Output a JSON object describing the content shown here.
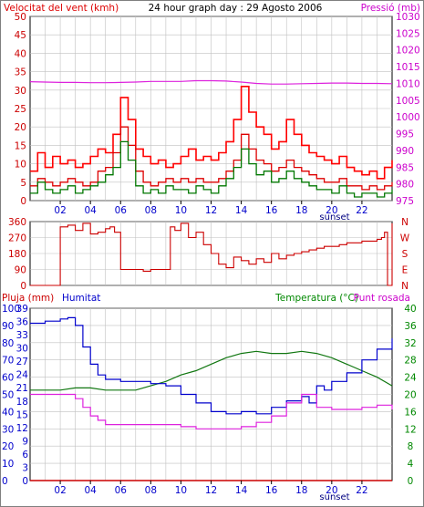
{
  "colors": {
    "wind": "#dd0000",
    "gust": "#ff0000",
    "pressure": "#dd22dd",
    "green_wind": "#007700",
    "blue_wind": "#0000cc",
    "direction": "#cc0000",
    "rain": "#cc0000",
    "humidity": "#0000cc",
    "temperature": "#117711",
    "dewpoint": "#dd22dd",
    "grid": "#c0c0c0",
    "axis_red": "#cc0000",
    "axis_blue": "#0000cc",
    "axis_green": "#008800",
    "axis_magenta": "#cc00cc"
  },
  "chart_data": [
    {
      "type": "line",
      "title": "24 hour graph day : 29 Agosto 2006",
      "ylabel_left": "Velocitat del vent (kmh)",
      "ylabel_right": "Pressió (mb)",
      "x_tick_labels": [
        "02",
        "04",
        "06",
        "08",
        "10",
        "12",
        "14",
        "16",
        "18",
        "20",
        "22"
      ],
      "x_extra_label": "sunset",
      "xlim": [
        0,
        24
      ],
      "ylim_left": [
        0,
        50
      ],
      "ylim_right": [
        975,
        1030
      ],
      "y_ticks_left": [
        0,
        5,
        10,
        15,
        20,
        25,
        30,
        35,
        40,
        45,
        50
      ],
      "y_ticks_right": [
        975,
        980,
        985,
        990,
        995,
        1000,
        1005,
        1010,
        1015,
        1020,
        1025,
        1030
      ],
      "series": [
        {
          "axis": "right",
          "style": "pressure",
          "x": [
            0,
            1,
            2,
            3,
            4,
            5,
            6,
            7,
            8,
            9,
            10,
            11,
            12,
            13,
            14,
            15,
            16,
            17,
            18,
            19,
            20,
            21,
            22,
            23,
            24
          ],
          "values": [
            1010.5,
            1010.4,
            1010.3,
            1010.3,
            1010.2,
            1010.2,
            1010.3,
            1010.4,
            1010.6,
            1010.6,
            1010.6,
            1010.8,
            1010.8,
            1010.7,
            1010.4,
            1010.0,
            1009.8,
            1009.8,
            1009.9,
            1010.0,
            1010.1,
            1010.1,
            1010.0,
            1010.0,
            1009.9
          ]
        },
        {
          "axis": "left",
          "style": "gust",
          "x": [
            0,
            0.5,
            1,
            1.5,
            2,
            2.5,
            3,
            3.5,
            4,
            4.5,
            5,
            5.5,
            6,
            6.5,
            7,
            7.5,
            8,
            8.5,
            9,
            9.5,
            10,
            10.5,
            11,
            11.5,
            12,
            12.5,
            13,
            13.5,
            14,
            14.5,
            15,
            15.5,
            16,
            16.5,
            17,
            17.5,
            18,
            18.5,
            19,
            19.5,
            20,
            20.5,
            21,
            21.5,
            22,
            22.5,
            23,
            23.5,
            24
          ],
          "values": [
            8,
            13,
            9,
            12,
            10,
            11,
            9,
            10,
            12,
            14,
            13,
            18,
            28,
            22,
            14,
            12,
            10,
            11,
            9,
            10,
            12,
            14,
            11,
            12,
            11,
            13,
            16,
            22,
            31,
            24,
            20,
            18,
            14,
            16,
            22,
            18,
            15,
            13,
            12,
            11,
            10,
            12,
            9,
            8,
            7,
            8,
            6,
            9,
            11
          ]
        },
        {
          "axis": "left",
          "style": "wind",
          "x": [
            0,
            0.5,
            1,
            1.5,
            2,
            2.5,
            3,
            3.5,
            4,
            4.5,
            5,
            5.5,
            6,
            6.5,
            7,
            7.5,
            8,
            8.5,
            9,
            9.5,
            10,
            10.5,
            11,
            11.5,
            12,
            12.5,
            13,
            13.5,
            14,
            14.5,
            15,
            15.5,
            16,
            16.5,
            17,
            17.5,
            18,
            18.5,
            19,
            19.5,
            20,
            20.5,
            21,
            21.5,
            22,
            22.5,
            23,
            23.5,
            24
          ],
          "values": [
            4,
            6,
            5,
            4,
            5,
            6,
            5,
            4,
            5,
            8,
            9,
            13,
            20,
            15,
            8,
            5,
            4,
            5,
            6,
            5,
            6,
            5,
            6,
            5,
            5,
            6,
            8,
            11,
            18,
            14,
            11,
            10,
            8,
            9,
            11,
            9,
            8,
            7,
            6,
            5,
            5,
            6,
            4,
            4,
            3,
            4,
            3,
            4,
            5
          ]
        },
        {
          "axis": "left",
          "style": "green_wind",
          "x": [
            0,
            0.5,
            1,
            1.5,
            2,
            2.5,
            3,
            3.5,
            4,
            4.5,
            5,
            5.5,
            6,
            6.5,
            7,
            7.5,
            8,
            8.5,
            9,
            9.5,
            10,
            10.5,
            11,
            11.5,
            12,
            12.5,
            13,
            13.5,
            14,
            14.5,
            15,
            15.5,
            16,
            16.5,
            17,
            17.5,
            18,
            18.5,
            19,
            19.5,
            20,
            20.5,
            21,
            21.5,
            22,
            22.5,
            23,
            23.5,
            24
          ],
          "values": [
            2,
            5,
            3,
            2,
            3,
            4,
            2,
            3,
            4,
            5,
            7,
            9,
            16,
            11,
            4,
            2,
            3,
            2,
            4,
            3,
            3,
            2,
            4,
            3,
            2,
            4,
            6,
            9,
            14,
            10,
            7,
            8,
            5,
            6,
            8,
            6,
            5,
            4,
            3,
            3,
            2,
            4,
            2,
            1,
            2,
            2,
            1,
            2,
            3
          ]
        }
      ]
    },
    {
      "type": "line",
      "ylabel_right_letters": [
        "N",
        "W",
        "S",
        "E",
        "N"
      ],
      "y_ticks_left": [
        0,
        90,
        180,
        270,
        360
      ],
      "ylim": [
        0,
        360
      ],
      "xlim": [
        0,
        24
      ],
      "series": [
        {
          "style": "direction",
          "x": [
            0,
            0.3,
            0.6,
            1.0,
            1.3,
            1.6,
            2.0,
            2.5,
            3.0,
            3.5,
            4.0,
            4.5,
            5.0,
            5.3,
            5.6,
            6.0,
            6.5,
            7.0,
            7.5,
            8.0,
            8.5,
            9.0,
            9.3,
            9.6,
            10.0,
            10.5,
            11.0,
            11.5,
            12.0,
            12.5,
            13.0,
            13.5,
            14.0,
            14.5,
            15.0,
            15.5,
            16.0,
            16.5,
            17.0,
            17.5,
            18.0,
            18.5,
            19.0,
            19.5,
            20.0,
            20.5,
            21.0,
            21.5,
            22.0,
            22.5,
            23.0,
            23.3,
            23.5,
            23.7,
            24.0
          ],
          "values": [
            0,
            0,
            0,
            0,
            0,
            0,
            330,
            340,
            310,
            350,
            290,
            300,
            320,
            330,
            300,
            90,
            90,
            90,
            80,
            90,
            90,
            90,
            330,
            310,
            350,
            270,
            300,
            230,
            180,
            120,
            100,
            160,
            140,
            120,
            150,
            130,
            180,
            150,
            170,
            180,
            190,
            200,
            210,
            220,
            220,
            230,
            240,
            240,
            250,
            250,
            260,
            270,
            300,
            0,
            350
          ]
        }
      ]
    },
    {
      "type": "line",
      "ylabel_left": "Pluja (mm)",
      "ylabel_humidity": "Humitat",
      "ylabel_right": "Temperatura (°C)",
      "ylabel_right2": "Punt rosada",
      "x_tick_labels": [
        "02",
        "04",
        "06",
        "08",
        "10",
        "12",
        "14",
        "16",
        "18",
        "20",
        "22"
      ],
      "x_extra_label": "sunset",
      "xlim": [
        0,
        24
      ],
      "y_ticks_rain": [
        0,
        10,
        20,
        30,
        40,
        50,
        60,
        70,
        80,
        90,
        100
      ],
      "y_ticks_humidity": [
        0,
        3,
        6,
        9,
        12,
        15,
        18,
        21,
        24,
        27,
        30,
        33,
        36,
        39
      ],
      "y_ticks_temp": [
        0,
        4,
        8,
        12,
        16,
        20,
        24,
        28,
        32,
        36,
        40
      ],
      "ylim_rain": [
        0,
        100
      ],
      "ylim_temp": [
        0,
        40
      ],
      "series": [
        {
          "axis": "temp",
          "style": "temperature",
          "x": [
            0,
            1,
            2,
            3,
            4,
            5,
            6,
            7,
            8,
            9,
            10,
            11,
            12,
            13,
            14,
            15,
            16,
            17,
            18,
            19,
            20,
            21,
            22,
            23,
            24
          ],
          "values": [
            21,
            21,
            21,
            21.5,
            21.5,
            21,
            21,
            21,
            22,
            23,
            24.5,
            25.5,
            27,
            28.5,
            29.5,
            30,
            29.5,
            29.5,
            30,
            29.5,
            28.5,
            27,
            25.5,
            24,
            22
          ]
        },
        {
          "axis": "temp",
          "style": "humidity",
          "x": [
            0,
            1,
            2,
            2.5,
            3,
            3.5,
            4,
            4.5,
            5,
            6,
            7,
            8,
            9,
            10,
            11,
            12,
            13,
            14,
            15,
            16,
            17,
            18,
            18.5,
            19,
            19.5,
            20,
            21,
            22,
            23,
            24
          ],
          "values": [
            36.5,
            37,
            37.5,
            37.8,
            36,
            31,
            27,
            24.5,
            23.5,
            23,
            23,
            22.5,
            22,
            20,
            18,
            16,
            15.5,
            16,
            15.5,
            17,
            18.5,
            19.5,
            18,
            22,
            21,
            23,
            25,
            28,
            30.5,
            33
          ]
        },
        {
          "axis": "temp",
          "style": "dewpoint",
          "x": [
            0,
            1,
            2,
            3,
            3.5,
            4,
            4.5,
            5,
            6,
            7,
            8,
            9,
            10,
            11,
            12,
            13,
            14,
            15,
            16,
            17,
            18,
            19,
            20,
            21,
            22,
            23,
            24
          ],
          "values": [
            20,
            20,
            20,
            19,
            17,
            15,
            14,
            13,
            13,
            13,
            13,
            13,
            12.5,
            12,
            12,
            12,
            12.5,
            13.5,
            15,
            18,
            20,
            17,
            16.5,
            16.5,
            17,
            17.5,
            16.5
          ]
        },
        {
          "axis": "rain",
          "style": "rain",
          "x": [
            0,
            24
          ],
          "values": [
            0,
            0
          ]
        }
      ]
    }
  ]
}
